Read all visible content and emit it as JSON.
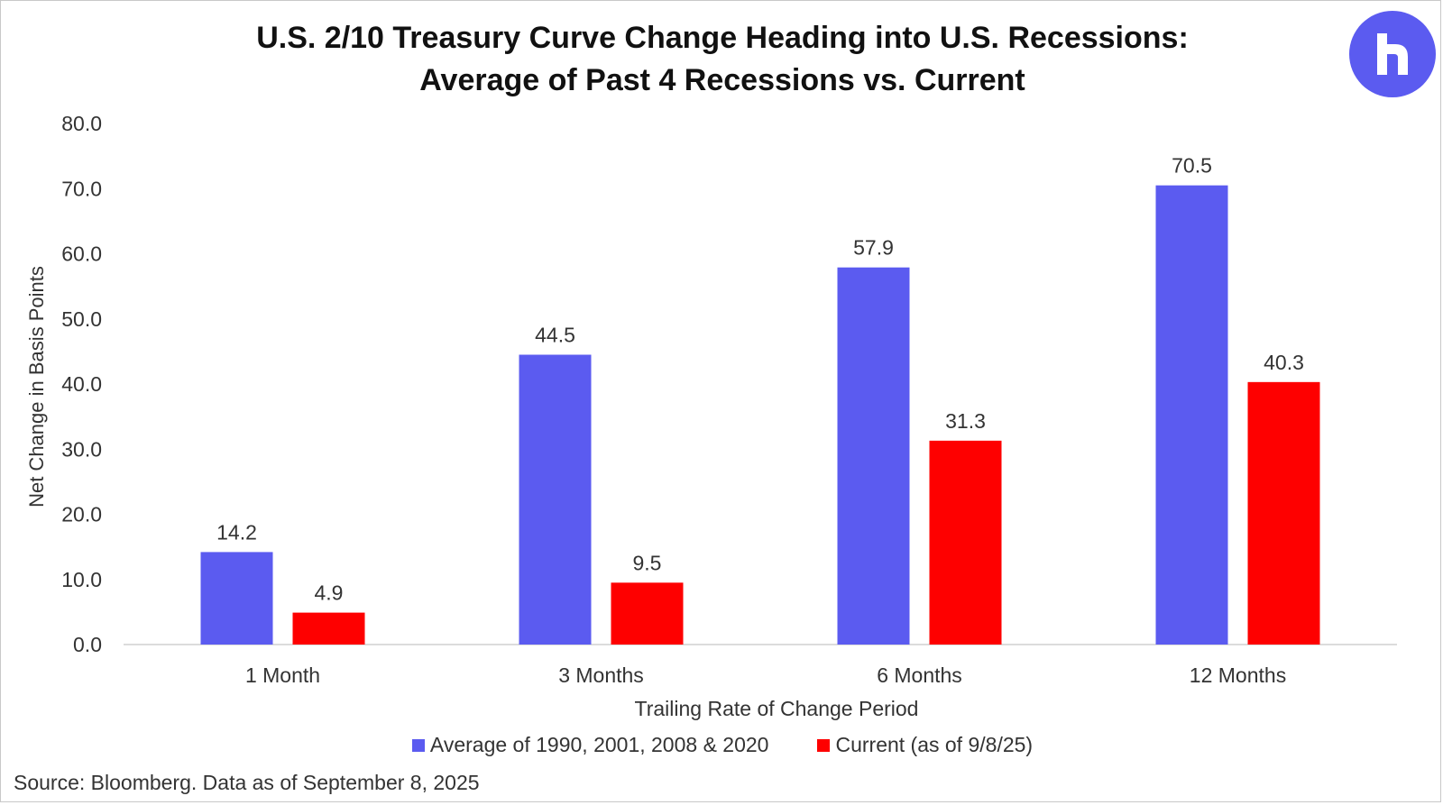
{
  "title_line1": "U.S. 2/10 Treasury Curve Change Heading into U.S. Recessions:",
  "title_line2": "Average of Past 4 Recessions vs. Current",
  "source": "Source: Bloomberg. Data as of September 8, 2025",
  "colors": {
    "accent": "#5b5bf0",
    "current": "#fe0000",
    "logo_bg": "#5b5bf0"
  },
  "logo_icon": "r-logo-icon",
  "chart_data": {
    "type": "bar",
    "categories": [
      "1 Month",
      "3 Months",
      "6 Months",
      "12 Months"
    ],
    "series": [
      {
        "name": "Average of 1990, 2001, 2008 & 2020",
        "color": "#5b5bf0",
        "values": [
          14.2,
          44.5,
          57.9,
          70.5
        ]
      },
      {
        "name": "Current (as of 9/8/25)",
        "color": "#fe0000",
        "values": [
          4.9,
          9.5,
          31.3,
          40.3
        ]
      }
    ],
    "xlabel": "Trailing Rate of Change Period",
    "ylabel": "Net Change in Basis Points",
    "ylim": [
      0,
      80
    ],
    "yticks": [
      "0.0",
      "10.0",
      "20.0",
      "30.0",
      "40.0",
      "50.0",
      "60.0",
      "70.0",
      "80.0"
    ],
    "grid": false,
    "legend": "bottom"
  }
}
